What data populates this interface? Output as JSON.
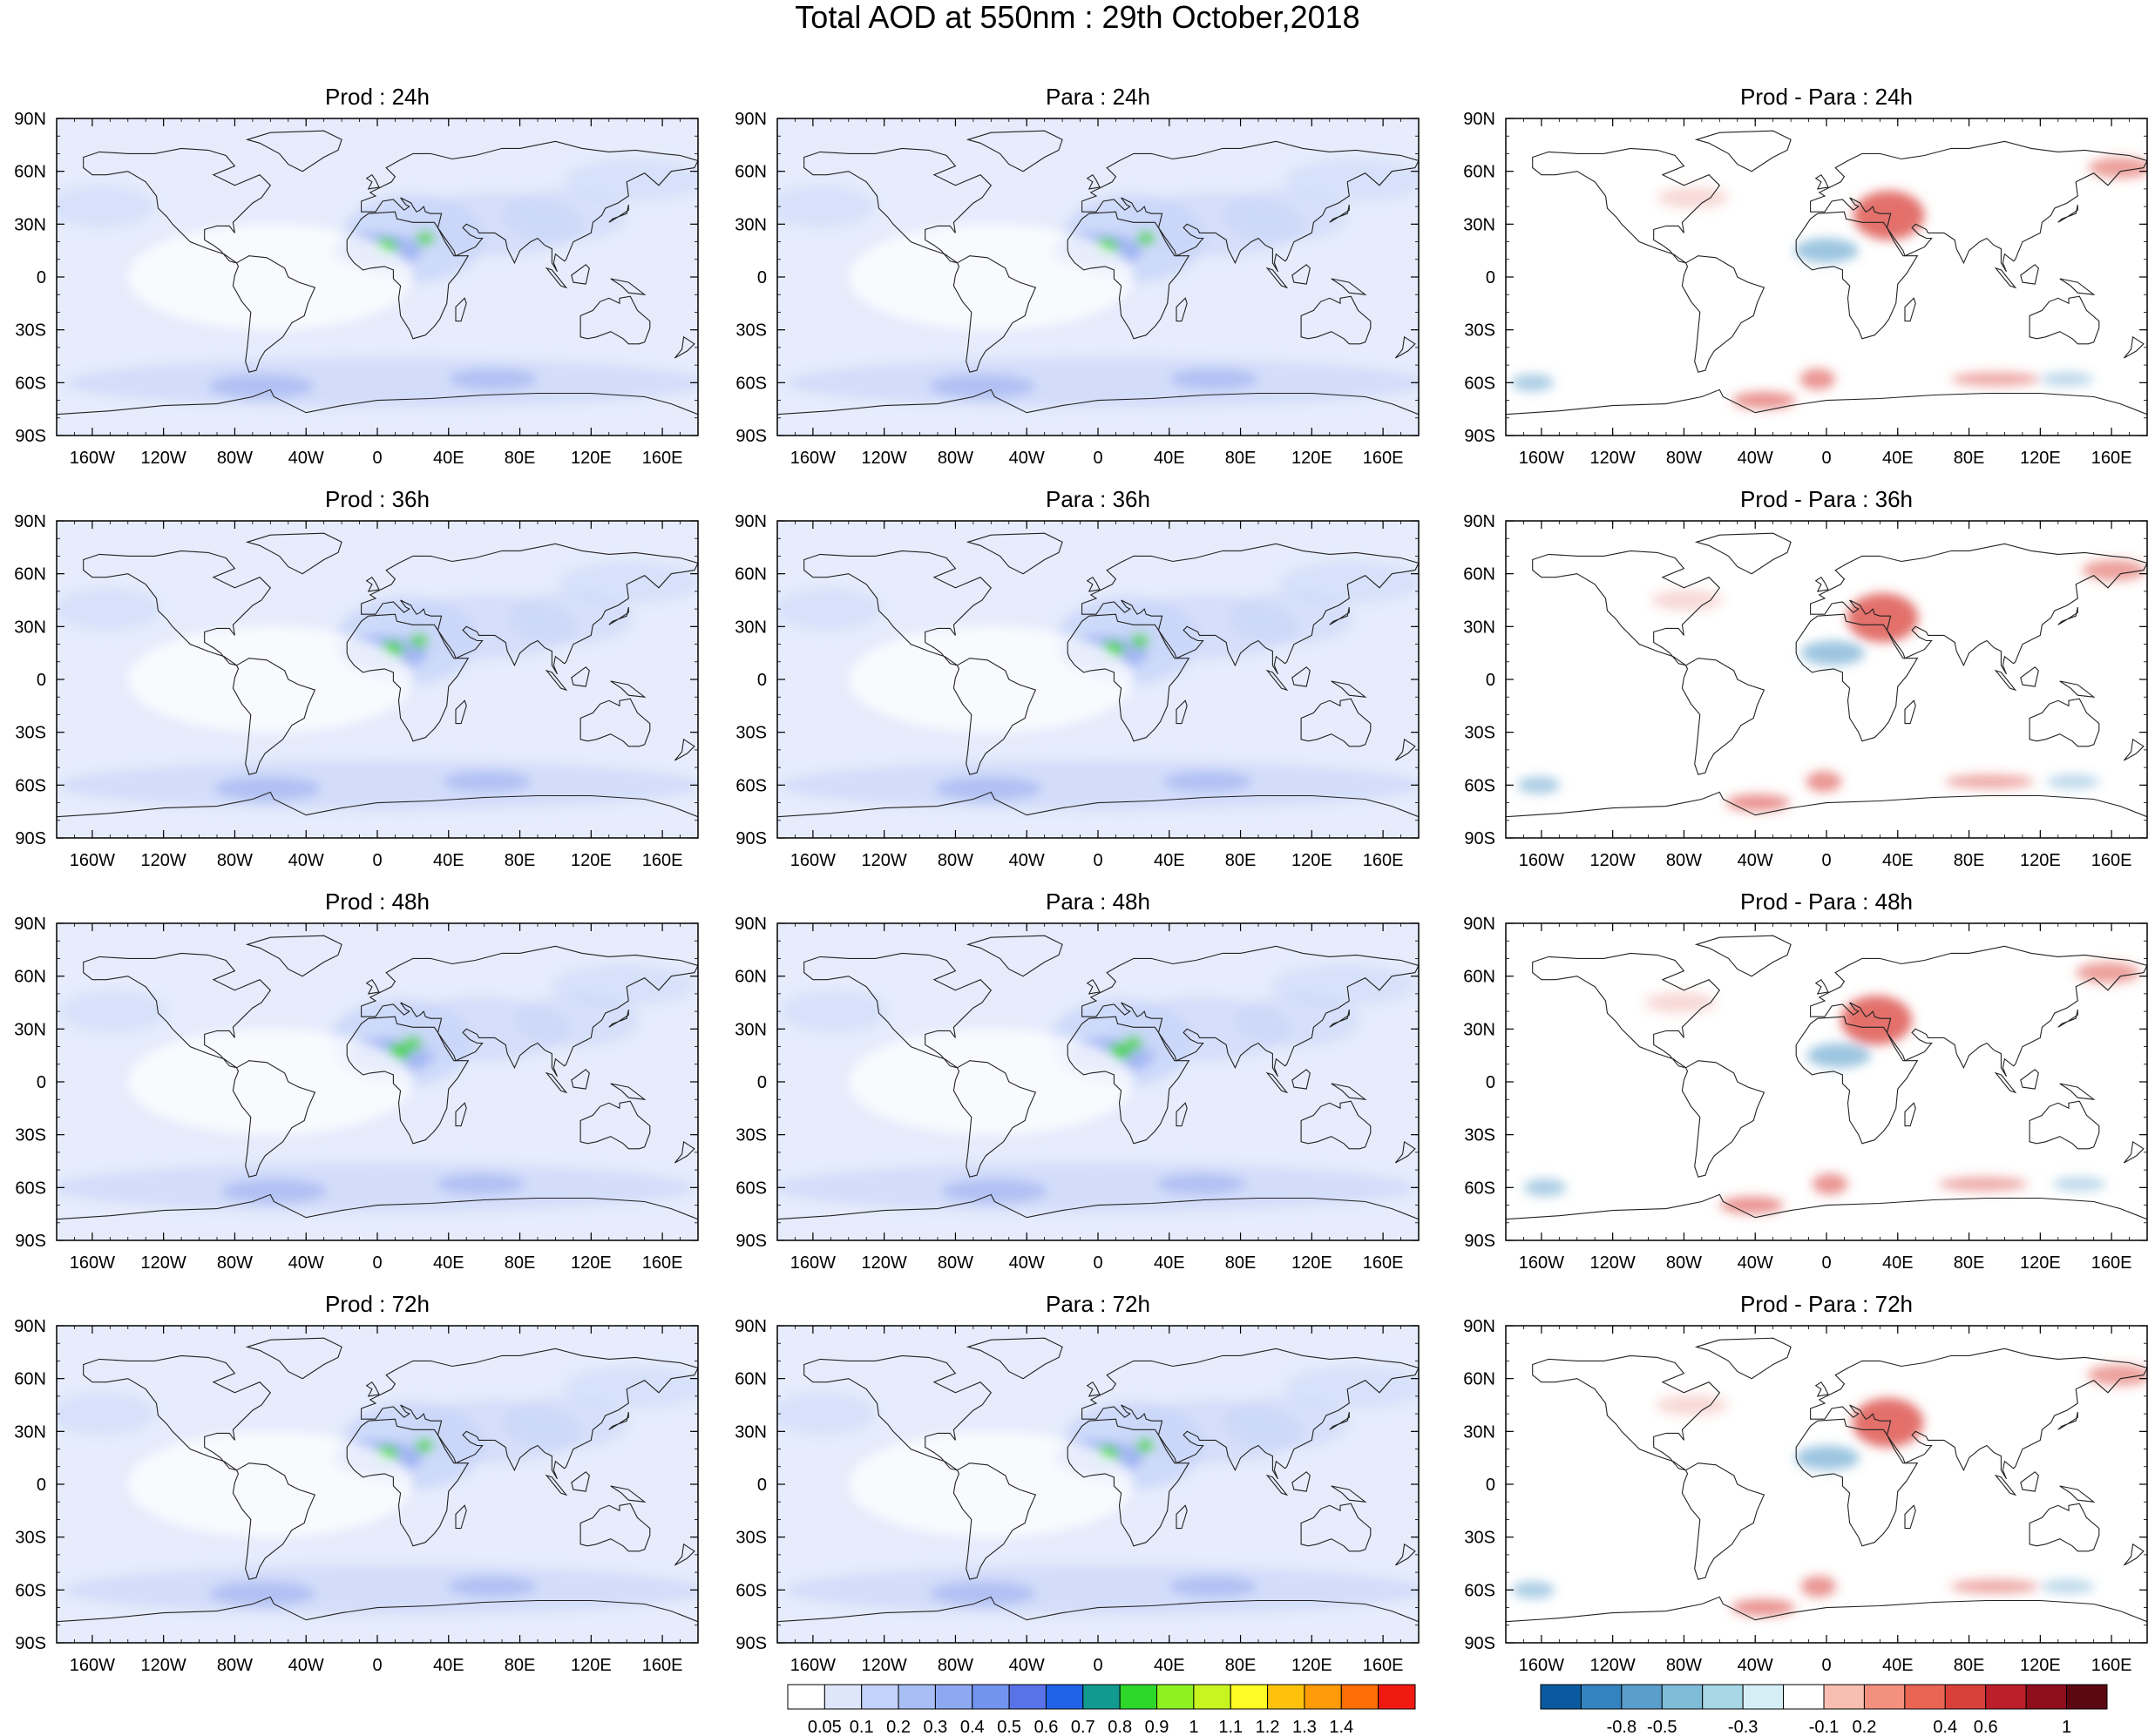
{
  "title": "Total AOD at 550nm : 29th October,2018",
  "x_tick_labels": [
    "160W",
    "120W",
    "80W",
    "40W",
    "0",
    "40E",
    "80E",
    "120E",
    "160E"
  ],
  "y_tick_labels": [
    "90N",
    "60N",
    "30N",
    "0",
    "30S",
    "60S",
    "90S"
  ],
  "panels": [
    {
      "title": "Prod : 24h",
      "kind": "aod"
    },
    {
      "title": "Para : 24h",
      "kind": "aod"
    },
    {
      "title": "Prod - Para : 24h",
      "kind": "diff"
    },
    {
      "title": "Prod : 36h",
      "kind": "aod"
    },
    {
      "title": "Para : 36h",
      "kind": "aod"
    },
    {
      "title": "Prod - Para : 36h",
      "kind": "diff"
    },
    {
      "title": "Prod : 48h",
      "kind": "aod"
    },
    {
      "title": "Para : 48h",
      "kind": "aod"
    },
    {
      "title": "Prod - Para : 48h",
      "kind": "diff"
    },
    {
      "title": "Prod : 72h",
      "kind": "aod"
    },
    {
      "title": "Para : 72h",
      "kind": "aod"
    },
    {
      "title": "Prod - Para : 72h",
      "kind": "diff"
    }
  ],
  "colorbar_aod": {
    "labels": [
      "0.05",
      "0.1",
      "0.2",
      "0.3",
      "0.4",
      "0.5",
      "0.6",
      "0.7",
      "0.8",
      "0.9",
      "1",
      "1.1",
      "1.2",
      "1.3",
      "1.4"
    ],
    "colors": [
      "#ffffff",
      "#dde6fb",
      "#c2d2f8",
      "#a8bef5",
      "#8ea9f1",
      "#7294ef",
      "#5a72e8",
      "#1f62e8",
      "#119a90",
      "#2ed82a",
      "#8ef222",
      "#c8f520",
      "#fffb24",
      "#ffc20c",
      "#ff9a08",
      "#ff6e06",
      "#f01a12"
    ]
  },
  "colorbar_diff": {
    "labels": [
      "-0.8",
      "-0.5",
      "-0.3",
      "-0.1",
      "0.2",
      "0.4",
      "0.6",
      "1"
    ],
    "colors": [
      "#0b5aa0",
      "#3383c0",
      "#5a9ecc",
      "#7fbcd8",
      "#a8d7e6",
      "#d6eff6",
      "#ffffff",
      "#f8beb1",
      "#f3907e",
      "#ea6453",
      "#d9403a",
      "#bd1f2a",
      "#8e0e1c",
      "#5c0811"
    ]
  },
  "background_colors": {
    "aod_light": "#e6ecfc",
    "aod_mid": "#c6d4f8",
    "aod_dark": "#7f97ec",
    "dust_green": "#3fd62b",
    "dust_yellow": "#f0f520",
    "diff_red": "#d9403a",
    "diff_blue": "#5a9ecc",
    "coast": "#222222"
  }
}
